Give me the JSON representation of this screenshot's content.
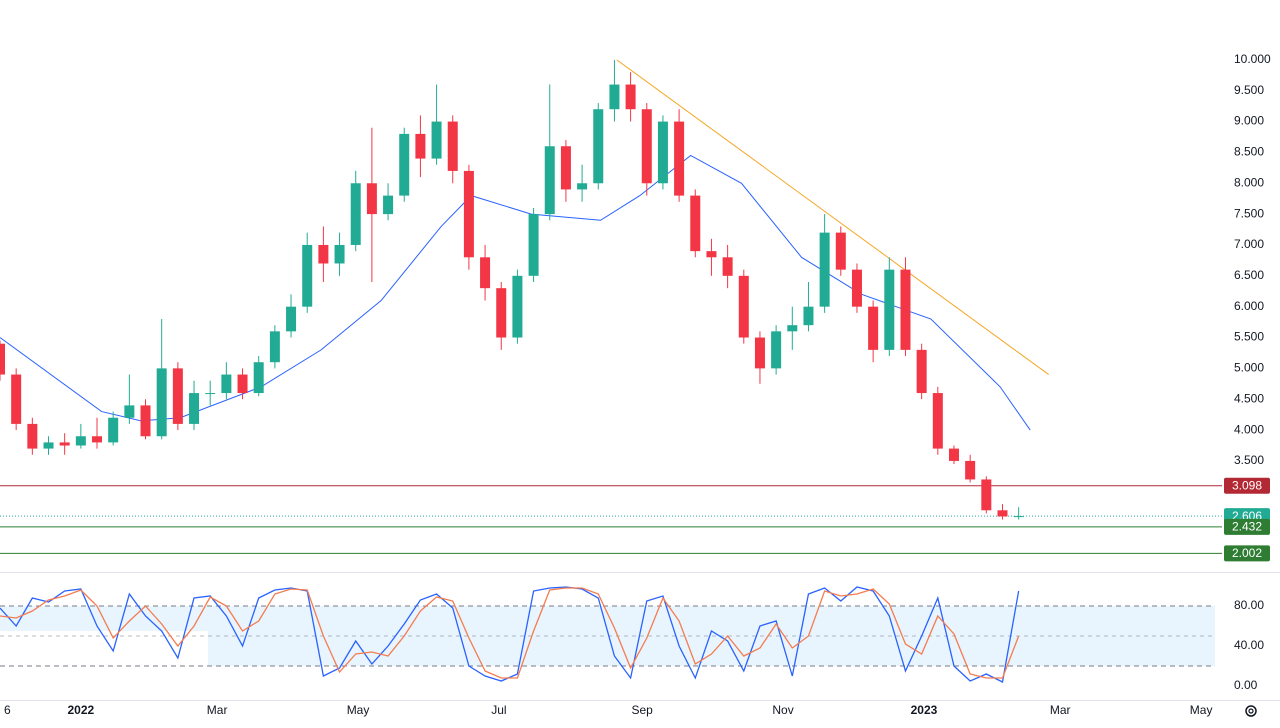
{
  "chart_data": {
    "type": "candlestick",
    "x": [
      -35,
      -28,
      -21,
      -14,
      -7,
      0,
      7,
      14,
      21,
      28,
      35,
      42,
      49,
      56,
      63,
      70,
      77,
      84,
      91,
      98,
      105,
      112,
      119,
      126,
      133,
      140,
      147,
      154,
      161,
      168,
      175,
      182,
      189,
      196,
      203,
      210,
      217,
      224,
      231,
      238,
      245,
      252,
      259,
      266,
      273,
      280,
      287,
      294,
      301,
      308,
      315,
      322,
      329,
      336,
      343,
      350,
      357,
      364,
      371,
      378,
      385,
      392,
      399,
      406
    ],
    "candles": [
      [
        5.4,
        5.45,
        4.8,
        4.9
      ],
      [
        4.9,
        5.0,
        4.0,
        4.1
      ],
      [
        4.1,
        4.2,
        3.6,
        3.7
      ],
      [
        3.7,
        3.9,
        3.6,
        3.8
      ],
      [
        3.8,
        3.95,
        3.6,
        3.75
      ],
      [
        3.75,
        4.1,
        3.7,
        3.9
      ],
      [
        3.9,
        4.2,
        3.7,
        3.8
      ],
      [
        3.8,
        4.3,
        3.75,
        4.2
      ],
      [
        4.2,
        4.9,
        4.1,
        4.4
      ],
      [
        4.4,
        4.5,
        3.85,
        3.9
      ],
      [
        3.9,
        5.8,
        3.85,
        5.0
      ],
      [
        5.0,
        5.1,
        4.0,
        4.1
      ],
      [
        4.1,
        4.8,
        4.0,
        4.6
      ],
      [
        4.6,
        4.8,
        4.4,
        4.6
      ],
      [
        4.6,
        5.1,
        4.5,
        4.9
      ],
      [
        4.9,
        5.0,
        4.5,
        4.6
      ],
      [
        4.6,
        5.2,
        4.55,
        5.1
      ],
      [
        5.1,
        5.7,
        5.0,
        5.6
      ],
      [
        5.6,
        6.2,
        5.5,
        6.0
      ],
      [
        6.0,
        7.2,
        5.9,
        7.0
      ],
      [
        7.0,
        7.3,
        6.4,
        6.7
      ],
      [
        6.7,
        7.2,
        6.5,
        7.0
      ],
      [
        7.0,
        8.2,
        6.9,
        8.0
      ],
      [
        8.0,
        8.9,
        6.4,
        7.5
      ],
      [
        7.5,
        8.0,
        7.4,
        7.8
      ],
      [
        7.8,
        8.9,
        7.7,
        8.8
      ],
      [
        8.8,
        9.1,
        8.1,
        8.4
      ],
      [
        8.4,
        9.6,
        8.3,
        9.0
      ],
      [
        9.0,
        9.1,
        8.0,
        8.2
      ],
      [
        8.2,
        8.3,
        6.6,
        6.8
      ],
      [
        6.8,
        7.0,
        6.1,
        6.3
      ],
      [
        6.3,
        6.4,
        5.3,
        5.5
      ],
      [
        5.5,
        6.6,
        5.4,
        6.5
      ],
      [
        6.5,
        7.6,
        6.4,
        7.5
      ],
      [
        7.5,
        9.6,
        7.4,
        8.6
      ],
      [
        8.6,
        8.7,
        7.7,
        7.9
      ],
      [
        7.9,
        8.3,
        7.7,
        8.0
      ],
      [
        8.0,
        9.3,
        7.9,
        9.2
      ],
      [
        9.2,
        10.0,
        9.0,
        9.6
      ],
      [
        9.6,
        9.8,
        9.0,
        9.2
      ],
      [
        9.2,
        9.3,
        7.8,
        8.0
      ],
      [
        8.0,
        9.1,
        7.9,
        9.0
      ],
      [
        9.0,
        9.2,
        7.7,
        7.8
      ],
      [
        7.8,
        7.9,
        6.8,
        6.9
      ],
      [
        6.9,
        7.1,
        6.5,
        6.8
      ],
      [
        6.8,
        7.0,
        6.3,
        6.5
      ],
      [
        6.5,
        6.6,
        5.4,
        5.5
      ],
      [
        5.5,
        5.6,
        4.75,
        5.0
      ],
      [
        5.0,
        5.7,
        4.9,
        5.6
      ],
      [
        5.6,
        6.0,
        5.3,
        5.7
      ],
      [
        5.7,
        6.4,
        5.6,
        6.0
      ],
      [
        6.0,
        7.5,
        5.9,
        7.2
      ],
      [
        7.2,
        7.3,
        6.5,
        6.6
      ],
      [
        6.6,
        6.7,
        5.9,
        6.0
      ],
      [
        6.0,
        6.1,
        5.1,
        5.3
      ],
      [
        5.3,
        6.8,
        5.2,
        6.6
      ],
      [
        6.6,
        6.8,
        5.2,
        5.3
      ],
      [
        5.3,
        5.4,
        4.5,
        4.6
      ],
      [
        4.6,
        4.7,
        3.6,
        3.7
      ],
      [
        3.7,
        3.75,
        3.45,
        3.5
      ],
      [
        3.5,
        3.6,
        3.15,
        3.2
      ],
      [
        3.2,
        3.25,
        2.65,
        2.7
      ],
      [
        2.7,
        2.8,
        2.55,
        2.6
      ],
      [
        2.6,
        2.75,
        2.55,
        2.606
      ]
    ],
    "up_color": "#22ab94",
    "down_color": "#f23645",
    "ma": {
      "color": "#2962ff",
      "x": [
        -35,
        9,
        26,
        43,
        78,
        104,
        130,
        156,
        169,
        195,
        225,
        242,
        264,
        286,
        312,
        338,
        368,
        398,
        411
      ],
      "values": [
        5.5,
        4.3,
        4.15,
        4.2,
        4.7,
        5.3,
        6.1,
        7.3,
        7.8,
        7.5,
        7.4,
        7.8,
        8.45,
        8.0,
        6.8,
        6.2,
        5.8,
        4.7,
        4.0
      ]
    },
    "trendline": {
      "color": "#f5a623",
      "x": [
        232,
        419
      ],
      "values": [
        10.0,
        4.9
      ]
    },
    "levels": [
      {
        "value": 3.098,
        "color": "#b22833",
        "style": "solid"
      },
      {
        "value": 2.606,
        "color": "#22ab94",
        "style": "dotted"
      },
      {
        "value": 2.432,
        "color": "#2e7d32",
        "style": "solid"
      },
      {
        "value": 2.002,
        "color": "#2e7d32",
        "style": "solid"
      }
    ],
    "xlim": [
      -35,
      491
    ],
    "xticks": [
      {
        "value": -35,
        "label": "6"
      },
      {
        "value": 0,
        "label": "2022"
      },
      {
        "value": 59,
        "label": "Mar"
      },
      {
        "value": 120,
        "label": "May"
      },
      {
        "value": 181,
        "label": "Jul"
      },
      {
        "value": 243,
        "label": "Sep"
      },
      {
        "value": 304,
        "label": "Nov"
      },
      {
        "value": 365,
        "label": "2023"
      },
      {
        "value": 424,
        "label": "Mar"
      },
      {
        "value": 485,
        "label": "May"
      }
    ],
    "ylim": [
      1.7,
      10.97
    ],
    "yticks": [
      {
        "value": 3.5,
        "label": "3.500"
      },
      {
        "value": 4,
        "label": "4.000"
      },
      {
        "value": 4.5,
        "label": "4.500"
      },
      {
        "value": 5,
        "label": "5.000"
      },
      {
        "value": 5.5,
        "label": "5.500"
      },
      {
        "value": 6,
        "label": "6.000"
      },
      {
        "value": 6.5,
        "label": "6.500"
      },
      {
        "value": 7,
        "label": "7.000"
      },
      {
        "value": 7.5,
        "label": "7.500"
      },
      {
        "value": 8,
        "label": "8.000"
      },
      {
        "value": 8.5,
        "label": "8.500"
      },
      {
        "value": 9,
        "label": "9.000"
      },
      {
        "value": 9.5,
        "label": "9.500"
      },
      {
        "value": 10,
        "label": "10.000"
      }
    ],
    "oscillator": {
      "ylim": [
        -14,
        113
      ],
      "yticks": [
        {
          "value": 0,
          "label": "0.00"
        },
        {
          "value": 40,
          "label": "40.00"
        },
        {
          "value": 80,
          "label": "80.00"
        }
      ],
      "levels": [
        20,
        50,
        80
      ],
      "band_start": 55,
      "series": [
        {
          "color": "#2962ff",
          "values": [
            78,
            60,
            88,
            84,
            95,
            97,
            60,
            35,
            92,
            70,
            55,
            28,
            88,
            90,
            70,
            40,
            88,
            96,
            98,
            95,
            10,
            18,
            45,
            22,
            40,
            62,
            86,
            92,
            78,
            20,
            10,
            5,
            12,
            95,
            98,
            99,
            97,
            88,
            30,
            8,
            85,
            90,
            40,
            8,
            55,
            45,
            15,
            60,
            65,
            10,
            92,
            98,
            85,
            99,
            95,
            70,
            15,
            50,
            88,
            20,
            5,
            12,
            4,
            95
          ]
        },
        {
          "color": "#f57c4f",
          "values": [
            70,
            68,
            75,
            86,
            90,
            96,
            80,
            48,
            65,
            80,
            62,
            40,
            60,
            89,
            80,
            55,
            65,
            92,
            97,
            96,
            50,
            14,
            32,
            34,
            30,
            50,
            75,
            89,
            85,
            48,
            15,
            8,
            8,
            55,
            96,
            98,
            98,
            92,
            58,
            18,
            48,
            88,
            65,
            22,
            32,
            50,
            30,
            38,
            62,
            38,
            50,
            95,
            90,
            92,
            97,
            82,
            42,
            32,
            70,
            52,
            12,
            8,
            8,
            50
          ]
        }
      ]
    }
  }
}
